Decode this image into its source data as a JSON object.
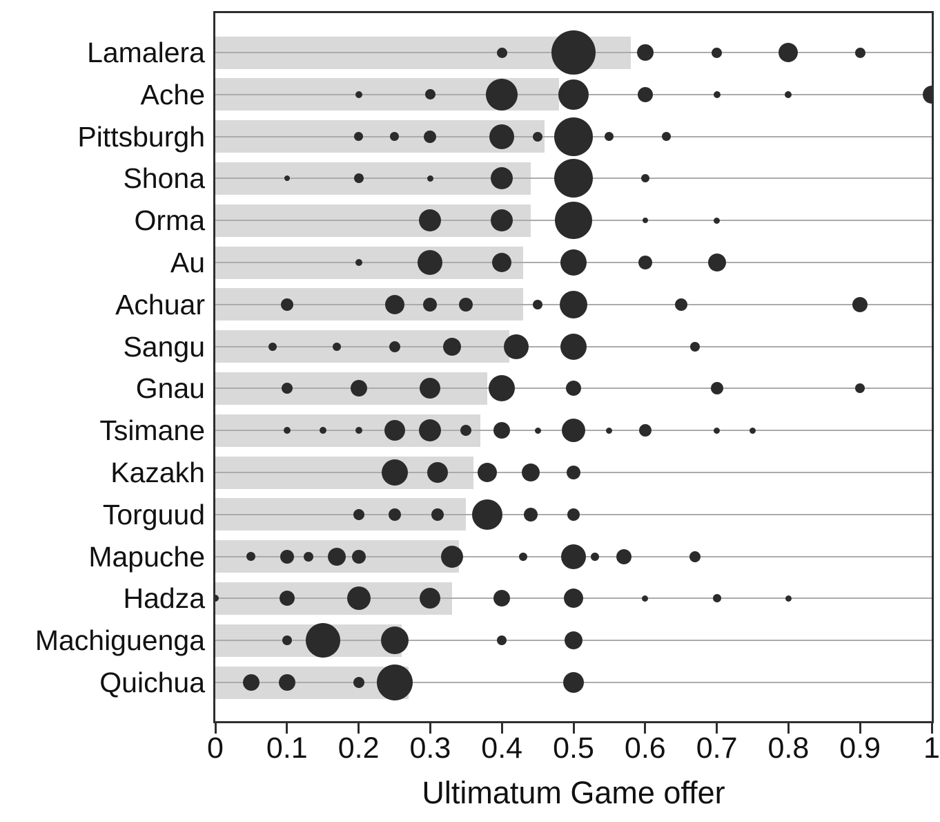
{
  "colors": {
    "bubble": "#2b2b2b",
    "mean_bar": "#d9d9d9",
    "row_line": "#ababab",
    "axis_border": "#2e2e2e",
    "text": "#111111",
    "background": "#ffffff"
  },
  "chart_data": {
    "type": "scatter",
    "title": "",
    "xlabel": "Ultimatum Game offer",
    "ylabel": "",
    "xlim": [
      0,
      1
    ],
    "x_tick_values": [
      0,
      0.1,
      0.2,
      0.3,
      0.4,
      0.5,
      0.6,
      0.7,
      0.8,
      0.9,
      1
    ],
    "x_tick_labels": [
      "0",
      "0.1",
      "0.2",
      "0.3",
      "0.4",
      "0.5",
      "0.6",
      "0.7",
      "0.8",
      "0.9",
      "1"
    ],
    "grid": "one horizontal line per society row",
    "legend": "none",
    "size_encoding": "bubble diameter (px) is proportional to the share of offers at that value",
    "bar_encoding": "light gray bar length = mean Ultimatum Game offer for the society",
    "societies": [
      {
        "label": "Lamalera",
        "mean": 0.58,
        "offers": [
          {
            "x": 0.4,
            "d": 15
          },
          {
            "x": 0.5,
            "d": 64
          },
          {
            "x": 0.6,
            "d": 24
          },
          {
            "x": 0.7,
            "d": 15
          },
          {
            "x": 0.8,
            "d": 28
          },
          {
            "x": 0.9,
            "d": 15
          }
        ]
      },
      {
        "label": "Ache",
        "mean": 0.48,
        "offers": [
          {
            "x": 0.2,
            "d": 10
          },
          {
            "x": 0.3,
            "d": 15
          },
          {
            "x": 0.4,
            "d": 46
          },
          {
            "x": 0.5,
            "d": 44
          },
          {
            "x": 0.6,
            "d": 22
          },
          {
            "x": 0.7,
            "d": 10
          },
          {
            "x": 0.8,
            "d": 10
          },
          {
            "x": 1.0,
            "d": 26
          }
        ]
      },
      {
        "label": "Pittsburgh",
        "mean": 0.46,
        "offers": [
          {
            "x": 0.2,
            "d": 13
          },
          {
            "x": 0.25,
            "d": 13
          },
          {
            "x": 0.3,
            "d": 18
          },
          {
            "x": 0.4,
            "d": 36
          },
          {
            "x": 0.45,
            "d": 14
          },
          {
            "x": 0.5,
            "d": 56
          },
          {
            "x": 0.55,
            "d": 13
          },
          {
            "x": 0.63,
            "d": 13
          }
        ]
      },
      {
        "label": "Shona",
        "mean": 0.44,
        "offers": [
          {
            "x": 0.1,
            "d": 8
          },
          {
            "x": 0.2,
            "d": 14
          },
          {
            "x": 0.3,
            "d": 9
          },
          {
            "x": 0.4,
            "d": 32
          },
          {
            "x": 0.5,
            "d": 56
          },
          {
            "x": 0.6,
            "d": 12
          }
        ]
      },
      {
        "label": "Orma",
        "mean": 0.44,
        "offers": [
          {
            "x": 0.3,
            "d": 32
          },
          {
            "x": 0.4,
            "d": 32
          },
          {
            "x": 0.5,
            "d": 54
          },
          {
            "x": 0.6,
            "d": 8
          },
          {
            "x": 0.7,
            "d": 9
          }
        ]
      },
      {
        "label": "Au",
        "mean": 0.43,
        "offers": [
          {
            "x": 0.2,
            "d": 10
          },
          {
            "x": 0.3,
            "d": 36
          },
          {
            "x": 0.4,
            "d": 28
          },
          {
            "x": 0.5,
            "d": 38
          },
          {
            "x": 0.6,
            "d": 20
          },
          {
            "x": 0.7,
            "d": 26
          }
        ]
      },
      {
        "label": "Achuar",
        "mean": 0.43,
        "offers": [
          {
            "x": 0.1,
            "d": 18
          },
          {
            "x": 0.25,
            "d": 28
          },
          {
            "x": 0.3,
            "d": 20
          },
          {
            "x": 0.35,
            "d": 20
          },
          {
            "x": 0.45,
            "d": 14
          },
          {
            "x": 0.5,
            "d": 40
          },
          {
            "x": 0.65,
            "d": 18
          },
          {
            "x": 0.9,
            "d": 22
          }
        ]
      },
      {
        "label": "Sangu",
        "mean": 0.41,
        "offers": [
          {
            "x": 0.08,
            "d": 12
          },
          {
            "x": 0.17,
            "d": 12
          },
          {
            "x": 0.25,
            "d": 16
          },
          {
            "x": 0.33,
            "d": 26
          },
          {
            "x": 0.42,
            "d": 36
          },
          {
            "x": 0.5,
            "d": 38
          },
          {
            "x": 0.67,
            "d": 14
          }
        ]
      },
      {
        "label": "Gnau",
        "mean": 0.38,
        "offers": [
          {
            "x": 0.1,
            "d": 16
          },
          {
            "x": 0.2,
            "d": 24
          },
          {
            "x": 0.3,
            "d": 30
          },
          {
            "x": 0.4,
            "d": 38
          },
          {
            "x": 0.5,
            "d": 22
          },
          {
            "x": 0.7,
            "d": 18
          },
          {
            "x": 0.9,
            "d": 14
          }
        ]
      },
      {
        "label": "Tsimane",
        "mean": 0.37,
        "offers": [
          {
            "x": 0.1,
            "d": 10
          },
          {
            "x": 0.15,
            "d": 10
          },
          {
            "x": 0.2,
            "d": 10
          },
          {
            "x": 0.25,
            "d": 30
          },
          {
            "x": 0.3,
            "d": 32
          },
          {
            "x": 0.35,
            "d": 16
          },
          {
            "x": 0.4,
            "d": 24
          },
          {
            "x": 0.45,
            "d": 9
          },
          {
            "x": 0.5,
            "d": 34
          },
          {
            "x": 0.55,
            "d": 9
          },
          {
            "x": 0.6,
            "d": 18
          },
          {
            "x": 0.7,
            "d": 9
          },
          {
            "x": 0.75,
            "d": 9
          }
        ]
      },
      {
        "label": "Kazakh",
        "mean": 0.36,
        "offers": [
          {
            "x": 0.25,
            "d": 38
          },
          {
            "x": 0.31,
            "d": 30
          },
          {
            "x": 0.38,
            "d": 28
          },
          {
            "x": 0.44,
            "d": 26
          },
          {
            "x": 0.5,
            "d": 20
          }
        ]
      },
      {
        "label": "Torguud",
        "mean": 0.35,
        "offers": [
          {
            "x": 0.2,
            "d": 16
          },
          {
            "x": 0.25,
            "d": 18
          },
          {
            "x": 0.31,
            "d": 18
          },
          {
            "x": 0.38,
            "d": 44
          },
          {
            "x": 0.44,
            "d": 20
          },
          {
            "x": 0.5,
            "d": 18
          }
        ]
      },
      {
        "label": "Mapuche",
        "mean": 0.34,
        "offers": [
          {
            "x": 0.05,
            "d": 13
          },
          {
            "x": 0.1,
            "d": 20
          },
          {
            "x": 0.13,
            "d": 14
          },
          {
            "x": 0.17,
            "d": 26
          },
          {
            "x": 0.2,
            "d": 20
          },
          {
            "x": 0.33,
            "d": 32
          },
          {
            "x": 0.43,
            "d": 12
          },
          {
            "x": 0.5,
            "d": 36
          },
          {
            "x": 0.53,
            "d": 12
          },
          {
            "x": 0.57,
            "d": 22
          },
          {
            "x": 0.67,
            "d": 16
          }
        ]
      },
      {
        "label": "Hadza",
        "mean": 0.33,
        "offers": [
          {
            "x": 0.0,
            "d": 10
          },
          {
            "x": 0.1,
            "d": 22
          },
          {
            "x": 0.2,
            "d": 34
          },
          {
            "x": 0.3,
            "d": 30
          },
          {
            "x": 0.4,
            "d": 24
          },
          {
            "x": 0.5,
            "d": 28
          },
          {
            "x": 0.6,
            "d": 9
          },
          {
            "x": 0.7,
            "d": 12
          },
          {
            "x": 0.8,
            "d": 9
          }
        ]
      },
      {
        "label": "Machiguenga",
        "mean": 0.26,
        "offers": [
          {
            "x": 0.1,
            "d": 14
          },
          {
            "x": 0.15,
            "d": 50
          },
          {
            "x": 0.25,
            "d": 40
          },
          {
            "x": 0.4,
            "d": 14
          },
          {
            "x": 0.5,
            "d": 26
          }
        ]
      },
      {
        "label": "Quichua",
        "mean": 0.27,
        "offers": [
          {
            "x": 0.05,
            "d": 24
          },
          {
            "x": 0.1,
            "d": 24
          },
          {
            "x": 0.2,
            "d": 16
          },
          {
            "x": 0.25,
            "d": 52
          },
          {
            "x": 0.5,
            "d": 30
          }
        ]
      }
    ]
  }
}
